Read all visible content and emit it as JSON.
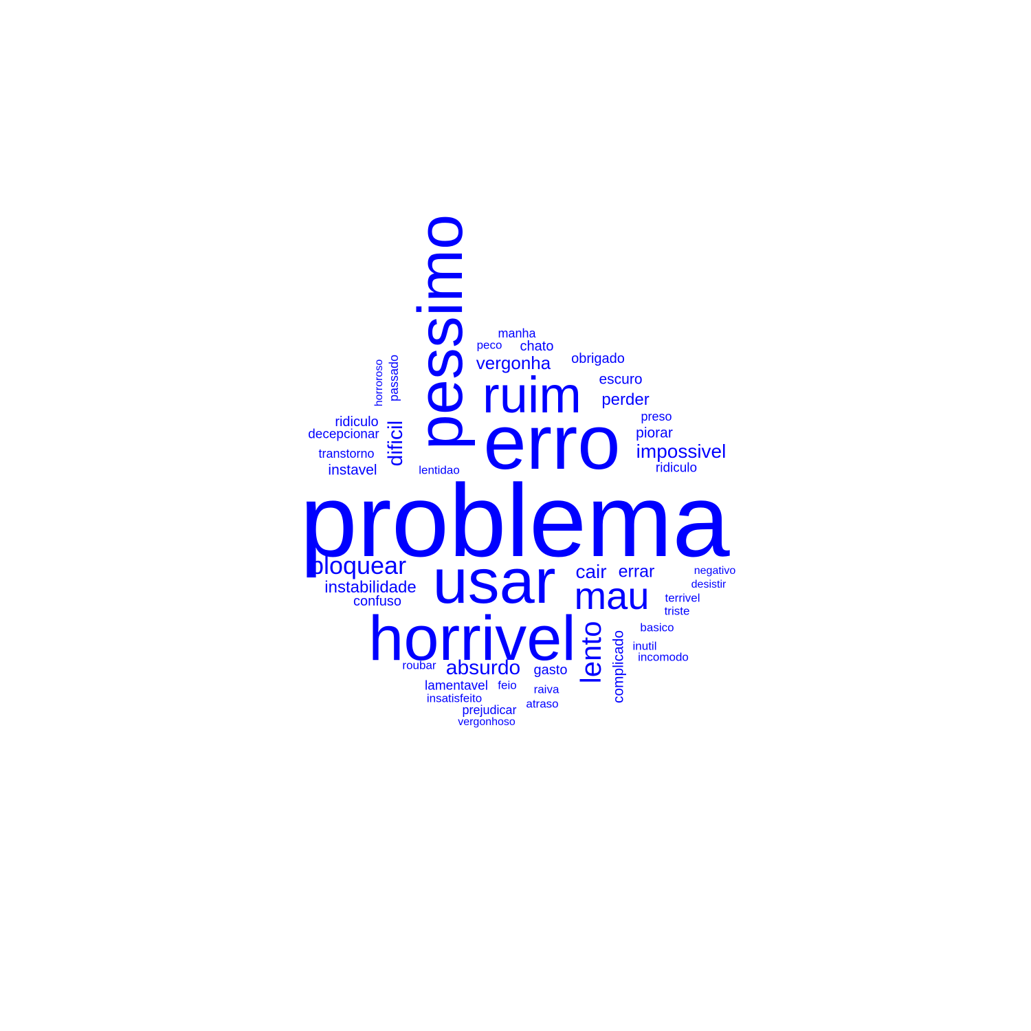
{
  "color": "#0000ff",
  "words": [
    {
      "text": "problema",
      "size": 8
    },
    {
      "text": "erro",
      "size": 6
    },
    {
      "text": "pessimo",
      "size": 5
    },
    {
      "text": "usar",
      "size": 5
    },
    {
      "text": "horrivel",
      "size": 5
    },
    {
      "text": "ruim",
      "size": 4
    },
    {
      "text": "mau",
      "size": 3
    },
    {
      "text": "lento",
      "size": 3
    },
    {
      "text": "bloquear",
      "size": 2
    },
    {
      "text": "absurdo",
      "size": 2
    },
    {
      "text": "dificil",
      "size": 2
    },
    {
      "text": "impossivel",
      "size": 2
    },
    {
      "text": "cair",
      "size": 2
    },
    {
      "text": "errar",
      "size": 2
    },
    {
      "text": "instabilidade",
      "size": 2
    },
    {
      "text": "vergonha",
      "size": 2
    },
    {
      "text": "perder",
      "size": 2
    },
    {
      "text": "escuro",
      "size": 1
    },
    {
      "text": "piorar",
      "size": 1
    },
    {
      "text": "obrigado",
      "size": 1
    },
    {
      "text": "chato",
      "size": 1
    },
    {
      "text": "manha",
      "size": 1
    },
    {
      "text": "peco",
      "size": 1
    },
    {
      "text": "passado",
      "size": 1
    },
    {
      "text": "horroroso",
      "size": 1
    },
    {
      "text": "ridiculo",
      "size": 1
    },
    {
      "text": "decepcionar",
      "size": 1
    },
    {
      "text": "transtorno",
      "size": 1
    },
    {
      "text": "instavel",
      "size": 1
    },
    {
      "text": "lentidao",
      "size": 1
    },
    {
      "text": "preso",
      "size": 1
    },
    {
      "text": "ridiculo",
      "size": 1
    },
    {
      "text": "confuso",
      "size": 1
    },
    {
      "text": "negativo",
      "size": 1
    },
    {
      "text": "desistir",
      "size": 1
    },
    {
      "text": "terrivel",
      "size": 1
    },
    {
      "text": "triste",
      "size": 1
    },
    {
      "text": "basico",
      "size": 1
    },
    {
      "text": "inutil",
      "size": 1
    },
    {
      "text": "incomodo",
      "size": 1
    },
    {
      "text": "complicado",
      "size": 1
    },
    {
      "text": "gasto",
      "size": 1
    },
    {
      "text": "roubar",
      "size": 1
    },
    {
      "text": "lamentavel",
      "size": 1
    },
    {
      "text": "feio",
      "size": 1
    },
    {
      "text": "raiva",
      "size": 1
    },
    {
      "text": "insatisfeito",
      "size": 1
    },
    {
      "text": "atraso",
      "size": 1
    },
    {
      "text": "prejudicar",
      "size": 1
    },
    {
      "text": "vergonhoso",
      "size": 1
    }
  ]
}
